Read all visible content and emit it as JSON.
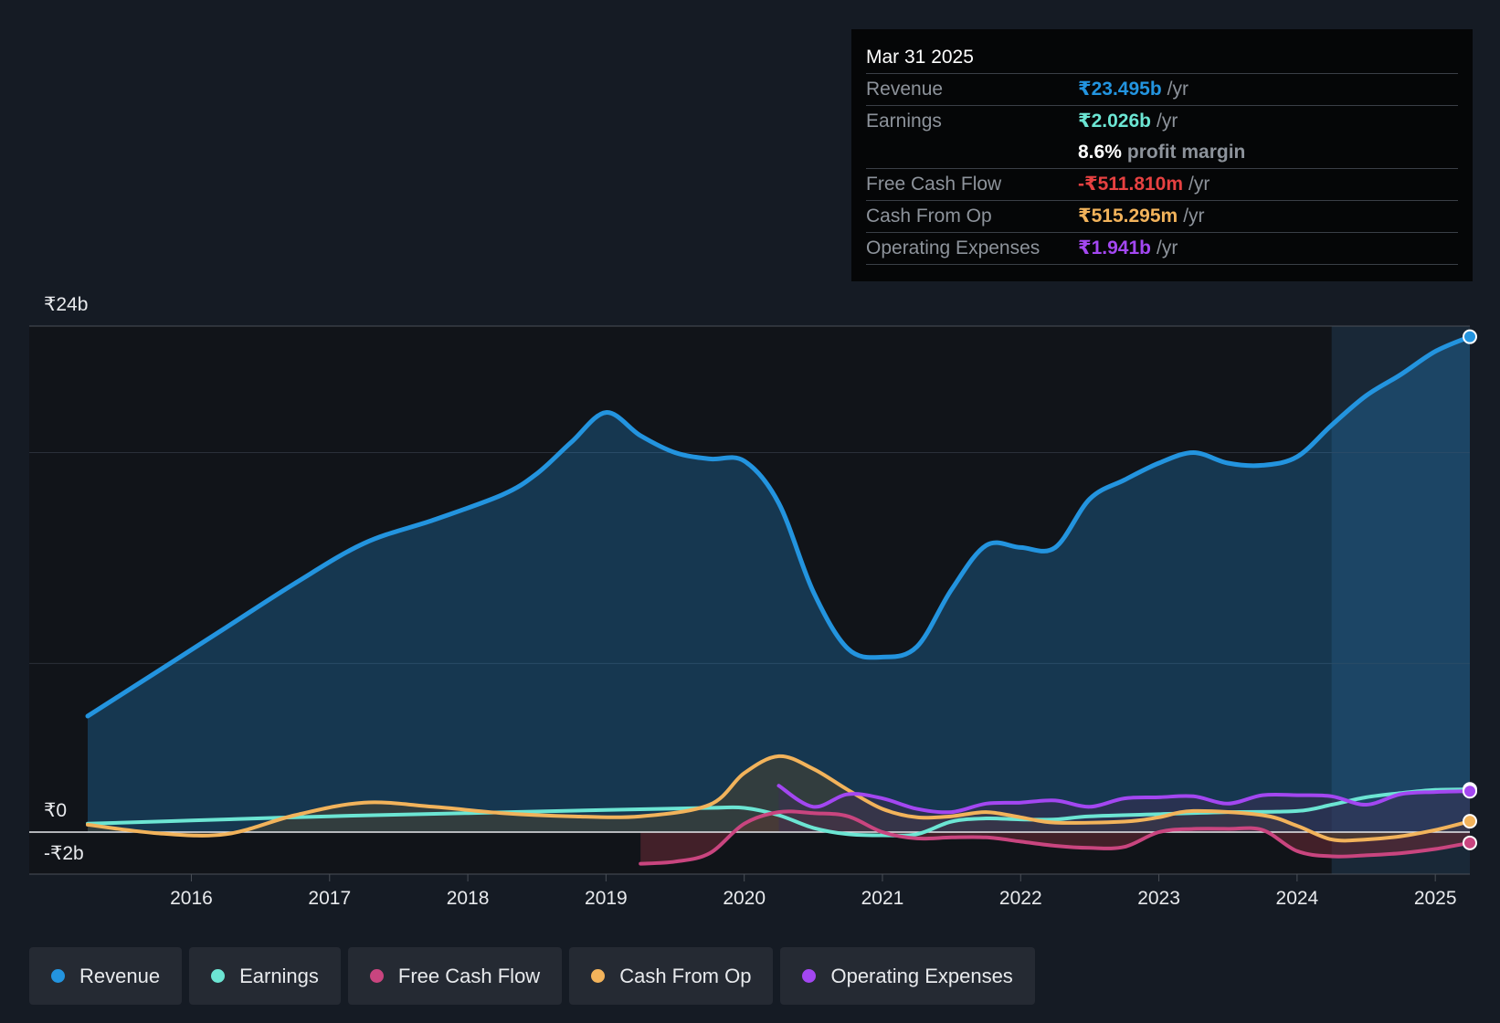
{
  "tooltip": {
    "date": "Mar 31 2025",
    "rows": [
      {
        "label": "Revenue",
        "value": "₹23.495b",
        "unit": "/yr",
        "color": "#2394df"
      },
      {
        "label": "Earnings",
        "value": "₹2.026b",
        "unit": "/yr",
        "color": "#6ce5d3"
      },
      {
        "label": "",
        "value": "8.6%",
        "unit": "profit margin",
        "color": "#ffffff"
      },
      {
        "label": "Free Cash Flow",
        "value": "-₹511.810m",
        "unit": "/yr",
        "color": "#e64141"
      },
      {
        "label": "Cash From Op",
        "value": "₹515.295m",
        "unit": "/yr",
        "color": "#f2b35b"
      },
      {
        "label": "Operating Expenses",
        "value": "₹1.941b",
        "unit": "/yr",
        "color": "#a347f1"
      }
    ]
  },
  "legend": [
    {
      "label": "Revenue",
      "color": "#2394df"
    },
    {
      "label": "Earnings",
      "color": "#6ce5d3"
    },
    {
      "label": "Free Cash Flow",
      "color": "#c9457f"
    },
    {
      "label": "Cash From Op",
      "color": "#f2b35b"
    },
    {
      "label": "Operating Expenses",
      "color": "#a347f1"
    }
  ],
  "chart_data": {
    "type": "area",
    "y_tick_labels": [
      "₹24b",
      "₹0",
      "-₹2b"
    ],
    "ylim": [
      -2,
      24
    ],
    "xlim": [
      2015.25,
      2025.25
    ],
    "x_tick_labels": [
      "2016",
      "2017",
      "2018",
      "2019",
      "2020",
      "2021",
      "2022",
      "2023",
      "2024",
      "2025"
    ],
    "x_ticks": [
      2016,
      2017,
      2018,
      2019,
      2020,
      2021,
      2022,
      2023,
      2024,
      2025
    ],
    "highlight_start": 2024.25,
    "grid": true,
    "series": [
      {
        "name": "Revenue",
        "color": "#2394df",
        "fill": true,
        "points": [
          [
            2015.25,
            5.5
          ],
          [
            2015.75,
            7.6
          ],
          [
            2016.25,
            9.7
          ],
          [
            2016.75,
            11.8
          ],
          [
            2017.25,
            13.7
          ],
          [
            2017.75,
            14.8
          ],
          [
            2018.25,
            16.0
          ],
          [
            2018.5,
            17.0
          ],
          [
            2018.75,
            18.5
          ],
          [
            2019.0,
            19.9
          ],
          [
            2019.25,
            18.8
          ],
          [
            2019.5,
            18.0
          ],
          [
            2019.75,
            17.7
          ],
          [
            2020.0,
            17.6
          ],
          [
            2020.25,
            15.6
          ],
          [
            2020.5,
            11.4
          ],
          [
            2020.75,
            8.7
          ],
          [
            2021.0,
            8.3
          ],
          [
            2021.25,
            8.8
          ],
          [
            2021.5,
            11.5
          ],
          [
            2021.75,
            13.6
          ],
          [
            2022.0,
            13.5
          ],
          [
            2022.25,
            13.5
          ],
          [
            2022.5,
            15.8
          ],
          [
            2022.75,
            16.7
          ],
          [
            2023.0,
            17.5
          ],
          [
            2023.25,
            18.0
          ],
          [
            2023.5,
            17.5
          ],
          [
            2023.75,
            17.4
          ],
          [
            2024.0,
            17.8
          ],
          [
            2024.25,
            19.3
          ],
          [
            2024.5,
            20.7
          ],
          [
            2024.75,
            21.7
          ],
          [
            2025.0,
            22.8
          ],
          [
            2025.25,
            23.495
          ]
        ]
      },
      {
        "name": "Earnings",
        "color": "#6ce5d3",
        "fill": false,
        "points": [
          [
            2015.25,
            0.4
          ],
          [
            2016.0,
            0.55
          ],
          [
            2017.0,
            0.75
          ],
          [
            2018.0,
            0.9
          ],
          [
            2019.0,
            1.05
          ],
          [
            2019.75,
            1.15
          ],
          [
            2020.0,
            1.15
          ],
          [
            2020.25,
            0.8
          ],
          [
            2020.5,
            0.2
          ],
          [
            2020.75,
            -0.1
          ],
          [
            2021.0,
            -0.15
          ],
          [
            2021.25,
            -0.1
          ],
          [
            2021.5,
            0.5
          ],
          [
            2021.75,
            0.65
          ],
          [
            2022.0,
            0.6
          ],
          [
            2022.25,
            0.6
          ],
          [
            2022.5,
            0.75
          ],
          [
            2023.0,
            0.85
          ],
          [
            2023.5,
            0.95
          ],
          [
            2024.0,
            1.0
          ],
          [
            2024.25,
            1.3
          ],
          [
            2024.5,
            1.65
          ],
          [
            2024.75,
            1.85
          ],
          [
            2025.0,
            2.0
          ],
          [
            2025.25,
            2.026
          ]
        ]
      },
      {
        "name": "Free Cash Flow",
        "color": "#c9457f",
        "fill": true,
        "fill_color": "#6b2a36",
        "points": [
          [
            2019.25,
            -1.5
          ],
          [
            2019.5,
            -1.4
          ],
          [
            2019.75,
            -1.0
          ],
          [
            2020.0,
            0.4
          ],
          [
            2020.25,
            0.95
          ],
          [
            2020.5,
            0.9
          ],
          [
            2020.75,
            0.75
          ],
          [
            2021.0,
            0.0
          ],
          [
            2021.25,
            -0.3
          ],
          [
            2021.5,
            -0.25
          ],
          [
            2021.75,
            -0.25
          ],
          [
            2022.0,
            -0.45
          ],
          [
            2022.25,
            -0.65
          ],
          [
            2022.5,
            -0.75
          ],
          [
            2022.75,
            -0.7
          ],
          [
            2023.0,
            0.0
          ],
          [
            2023.25,
            0.15
          ],
          [
            2023.5,
            0.15
          ],
          [
            2023.75,
            0.1
          ],
          [
            2024.0,
            -0.9
          ],
          [
            2024.25,
            -1.15
          ],
          [
            2024.5,
            -1.1
          ],
          [
            2024.75,
            -1.0
          ],
          [
            2025.0,
            -0.8
          ],
          [
            2025.25,
            -0.512
          ]
        ]
      },
      {
        "name": "Cash From Op",
        "color": "#f2b35b",
        "fill": true,
        "fill_color": "#4a4330",
        "points": [
          [
            2015.25,
            0.35
          ],
          [
            2015.75,
            -0.05
          ],
          [
            2016.25,
            -0.1
          ],
          [
            2016.75,
            0.8
          ],
          [
            2017.25,
            1.4
          ],
          [
            2017.75,
            1.2
          ],
          [
            2018.25,
            0.9
          ],
          [
            2018.75,
            0.75
          ],
          [
            2019.25,
            0.75
          ],
          [
            2019.75,
            1.3
          ],
          [
            2020.0,
            2.8
          ],
          [
            2020.25,
            3.6
          ],
          [
            2020.5,
            3.0
          ],
          [
            2020.75,
            2.0
          ],
          [
            2021.0,
            1.1
          ],
          [
            2021.25,
            0.7
          ],
          [
            2021.5,
            0.75
          ],
          [
            2021.75,
            0.95
          ],
          [
            2022.0,
            0.7
          ],
          [
            2022.25,
            0.45
          ],
          [
            2022.75,
            0.5
          ],
          [
            2023.0,
            0.7
          ],
          [
            2023.25,
            1.0
          ],
          [
            2023.75,
            0.8
          ],
          [
            2024.0,
            0.3
          ],
          [
            2024.25,
            -0.35
          ],
          [
            2024.5,
            -0.35
          ],
          [
            2024.75,
            -0.2
          ],
          [
            2025.0,
            0.1
          ],
          [
            2025.25,
            0.515
          ]
        ]
      },
      {
        "name": "Operating Expenses",
        "color": "#a347f1",
        "fill": true,
        "fill_color": "#3a2f52",
        "points": [
          [
            2020.25,
            2.2
          ],
          [
            2020.5,
            1.2
          ],
          [
            2020.75,
            1.8
          ],
          [
            2021.0,
            1.6
          ],
          [
            2021.25,
            1.1
          ],
          [
            2021.5,
            0.95
          ],
          [
            2021.75,
            1.35
          ],
          [
            2022.0,
            1.4
          ],
          [
            2022.25,
            1.5
          ],
          [
            2022.5,
            1.2
          ],
          [
            2022.75,
            1.6
          ],
          [
            2023.0,
            1.65
          ],
          [
            2023.25,
            1.7
          ],
          [
            2023.5,
            1.35
          ],
          [
            2023.75,
            1.75
          ],
          [
            2024.0,
            1.75
          ],
          [
            2024.25,
            1.7
          ],
          [
            2024.5,
            1.3
          ],
          [
            2024.75,
            1.8
          ],
          [
            2025.0,
            1.9
          ],
          [
            2025.25,
            1.941
          ]
        ]
      }
    ]
  }
}
